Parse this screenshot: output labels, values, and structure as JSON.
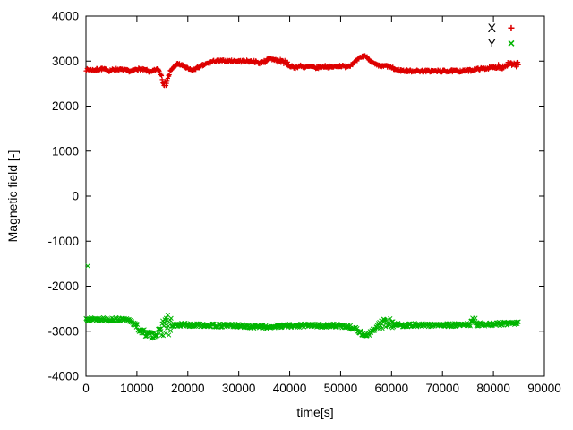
{
  "chart_data": {
    "type": "scatter",
    "title": "",
    "xlabel": "time[s]",
    "ylabel": "Magnetic field [-]",
    "xlim": [
      0,
      90000
    ],
    "ylim": [
      -4000,
      4000
    ],
    "xticks": [
      0,
      10000,
      20000,
      30000,
      40000,
      50000,
      60000,
      70000,
      80000,
      90000
    ],
    "yticks": [
      -4000,
      -3000,
      -2000,
      -1000,
      0,
      1000,
      2000,
      3000,
      4000
    ],
    "grid": false,
    "legend_position": "top-right",
    "sample_interval": 110,
    "series": [
      {
        "name": "X",
        "color": "#dd0000",
        "marker": "plus",
        "marker_glyph": "+",
        "seed": 7,
        "noise": 28,
        "noise_regions": [
          {
            "from": 14600,
            "to": 16600,
            "amp": 70
          },
          {
            "from": 35000,
            "to": 39600,
            "amp": 55
          },
          {
            "from": 80500,
            "to": 85000,
            "amp": 55
          }
        ],
        "anchors": [
          [
            0,
            2810
          ],
          [
            1500,
            2800
          ],
          [
            3000,
            2830
          ],
          [
            4500,
            2790
          ],
          [
            6000,
            2820
          ],
          [
            7500,
            2800
          ],
          [
            9000,
            2770
          ],
          [
            10000,
            2830
          ],
          [
            11000,
            2810
          ],
          [
            12000,
            2790
          ],
          [
            12800,
            2750
          ],
          [
            13500,
            2800
          ],
          [
            14200,
            2820
          ],
          [
            14800,
            2700
          ],
          [
            15200,
            2540
          ],
          [
            15600,
            2480
          ],
          [
            16000,
            2600
          ],
          [
            16500,
            2750
          ],
          [
            17200,
            2870
          ],
          [
            18000,
            2940
          ],
          [
            18800,
            2910
          ],
          [
            19500,
            2860
          ],
          [
            20200,
            2820
          ],
          [
            21000,
            2790
          ],
          [
            21800,
            2850
          ],
          [
            22600,
            2890
          ],
          [
            23500,
            2930
          ],
          [
            24300,
            2970
          ],
          [
            25200,
            3000
          ],
          [
            27000,
            3005
          ],
          [
            29000,
            3000
          ],
          [
            31000,
            3000
          ],
          [
            33000,
            2995
          ],
          [
            34000,
            2955
          ],
          [
            34800,
            2990
          ],
          [
            35800,
            3020
          ],
          [
            36800,
            3055
          ],
          [
            37600,
            3000
          ],
          [
            38400,
            3010
          ],
          [
            39200,
            2960
          ],
          [
            40000,
            2890
          ],
          [
            41000,
            2855
          ],
          [
            42000,
            2895
          ],
          [
            43000,
            2865
          ],
          [
            44000,
            2880
          ],
          [
            45000,
            2850
          ],
          [
            46000,
            2865
          ],
          [
            47000,
            2885
          ],
          [
            48000,
            2865
          ],
          [
            49000,
            2880
          ],
          [
            50000,
            2895
          ],
          [
            51000,
            2875
          ],
          [
            52000,
            2915
          ],
          [
            53000,
            2990
          ],
          [
            54000,
            3090
          ],
          [
            54800,
            3120
          ],
          [
            55600,
            3040
          ],
          [
            56400,
            2950
          ],
          [
            57200,
            2900
          ],
          [
            58000,
            2880
          ],
          [
            59000,
            2895
          ],
          [
            60000,
            2850
          ],
          [
            61000,
            2805
          ],
          [
            62000,
            2790
          ],
          [
            63000,
            2782
          ],
          [
            65000,
            2780
          ],
          [
            68000,
            2778
          ],
          [
            71000,
            2780
          ],
          [
            74000,
            2782
          ],
          [
            75500,
            2795
          ],
          [
            77000,
            2825
          ],
          [
            78500,
            2840
          ],
          [
            80000,
            2855
          ],
          [
            81000,
            2895
          ],
          [
            82000,
            2870
          ],
          [
            83000,
            2940
          ],
          [
            84000,
            2905
          ],
          [
            85000,
            2945
          ]
        ],
        "outliers": []
      },
      {
        "name": "Y",
        "color": "#00b400",
        "marker": "cross",
        "marker_glyph": "×",
        "seed": 13,
        "noise": 40,
        "noise_regions": [
          {
            "from": 9800,
            "to": 14600,
            "amp": 75
          },
          {
            "from": 14800,
            "to": 16800,
            "amp": 260
          },
          {
            "from": 57400,
            "to": 60600,
            "amp": 110
          },
          {
            "from": 75400,
            "to": 77200,
            "amp": 90
          }
        ],
        "anchors": [
          [
            0,
            -2720
          ],
          [
            1500,
            -2735
          ],
          [
            3000,
            -2725
          ],
          [
            4500,
            -2745
          ],
          [
            6000,
            -2735
          ],
          [
            7500,
            -2745
          ],
          [
            8800,
            -2770
          ],
          [
            9600,
            -2850
          ],
          [
            10400,
            -2950
          ],
          [
            11200,
            -3020
          ],
          [
            12000,
            -3060
          ],
          [
            12800,
            -3090
          ],
          [
            13600,
            -3070
          ],
          [
            14400,
            -3010
          ],
          [
            15000,
            -2920
          ],
          [
            15600,
            -2870
          ],
          [
            16200,
            -2900
          ],
          [
            17000,
            -2875
          ],
          [
            18000,
            -2860
          ],
          [
            19000,
            -2850
          ],
          [
            20000,
            -2862
          ],
          [
            21500,
            -2868
          ],
          [
            23000,
            -2858
          ],
          [
            24500,
            -2868
          ],
          [
            26000,
            -2878
          ],
          [
            28000,
            -2868
          ],
          [
            30000,
            -2880
          ],
          [
            32000,
            -2898
          ],
          [
            33500,
            -2888
          ],
          [
            35000,
            -2915
          ],
          [
            36500,
            -2898
          ],
          [
            38000,
            -2882
          ],
          [
            39500,
            -2872
          ],
          [
            41000,
            -2880
          ],
          [
            42500,
            -2872
          ],
          [
            44000,
            -2868
          ],
          [
            45500,
            -2875
          ],
          [
            47000,
            -2880
          ],
          [
            48500,
            -2872
          ],
          [
            50000,
            -2880
          ],
          [
            51500,
            -2895
          ],
          [
            53000,
            -2945
          ],
          [
            54000,
            -3040
          ],
          [
            54800,
            -3095
          ],
          [
            55600,
            -3060
          ],
          [
            56400,
            -2975
          ],
          [
            57200,
            -2900
          ],
          [
            58000,
            -2845
          ],
          [
            59000,
            -2805
          ],
          [
            60000,
            -2825
          ],
          [
            61000,
            -2850
          ],
          [
            62000,
            -2868
          ],
          [
            64000,
            -2860
          ],
          [
            66000,
            -2868
          ],
          [
            68000,
            -2860
          ],
          [
            70000,
            -2868
          ],
          [
            72000,
            -2862
          ],
          [
            74000,
            -2868
          ],
          [
            75200,
            -2845
          ],
          [
            76000,
            -2775
          ],
          [
            76800,
            -2815
          ],
          [
            78000,
            -2848
          ],
          [
            80000,
            -2840
          ],
          [
            82000,
            -2832
          ],
          [
            84000,
            -2822
          ],
          [
            85000,
            -2812
          ]
        ],
        "outliers": [
          [
            350,
            -1550
          ]
        ]
      }
    ]
  }
}
